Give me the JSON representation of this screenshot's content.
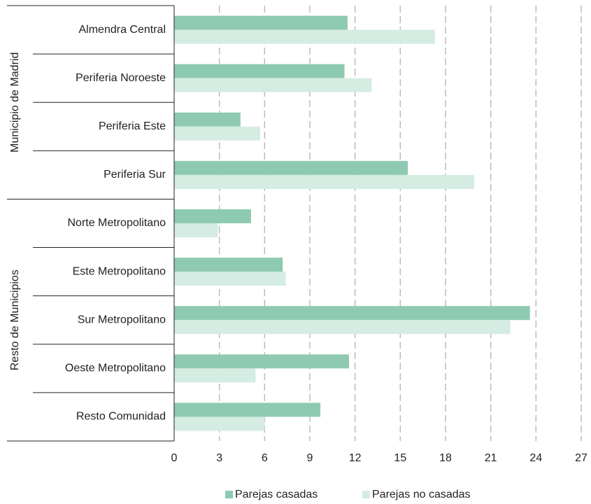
{
  "chart_data": {
    "type": "bar",
    "orientation": "horizontal",
    "groups": [
      {
        "name": "Municipio de Madrid",
        "categories": [
          "Almendra Central",
          "Periferia Noroeste",
          "Periferia Este",
          "Periferia Sur"
        ]
      },
      {
        "name": "Resto de Municipios",
        "categories": [
          "Norte Metropolitano",
          "Este Metropolitano",
          "Sur Metropolitano",
          "Oeste Metropolitano",
          "Resto Comunidad"
        ]
      }
    ],
    "series": [
      {
        "name": "Parejas casadas",
        "color": "#8ecab1",
        "values": [
          11.5,
          11.3,
          4.4,
          15.5,
          5.1,
          7.2,
          23.6,
          11.6,
          9.7
        ]
      },
      {
        "name": "Parejas no casadas",
        "color": "#d5ece3",
        "values": [
          17.3,
          13.1,
          5.7,
          19.9,
          2.9,
          7.4,
          22.3,
          5.4,
          6.0
        ]
      }
    ],
    "xlim": [
      0,
      27
    ],
    "xticks": [
      0,
      3,
      6,
      9,
      12,
      15,
      18,
      21,
      24,
      27
    ],
    "grid": true,
    "legend": "bottom"
  }
}
